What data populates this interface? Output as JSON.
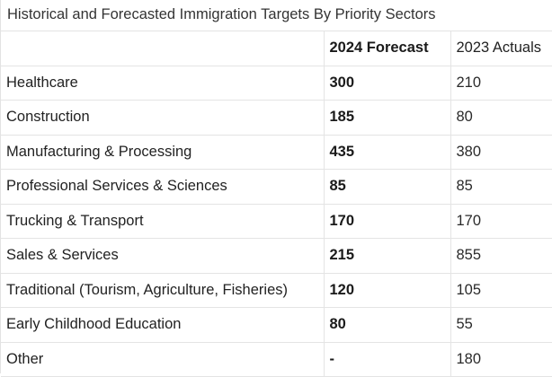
{
  "caption": "Historical and Forecasted Immigration Targets By Priority Sectors",
  "table": {
    "headers": [
      "",
      "2024 Forecast",
      "2023 Actuals"
    ],
    "rows": [
      {
        "sector": "Healthcare",
        "forecast_2024": "300",
        "actuals_2023": "210"
      },
      {
        "sector": "Construction",
        "forecast_2024": "185",
        "actuals_2023": "80"
      },
      {
        "sector": "Manufacturing & Processing",
        "forecast_2024": "435",
        "actuals_2023": "380"
      },
      {
        "sector": "Professional Services & Sciences",
        "forecast_2024": "85",
        "actuals_2023": "85"
      },
      {
        "sector": "Trucking & Transport",
        "forecast_2024": "170",
        "actuals_2023": "170"
      },
      {
        "sector": "Sales & Services",
        "forecast_2024": "215",
        "actuals_2023": "855"
      },
      {
        "sector": "Traditional (Tourism, Agriculture, Fisheries)",
        "forecast_2024": "120",
        "actuals_2023": "105"
      },
      {
        "sector": "Early Childhood Education",
        "forecast_2024": "80",
        "actuals_2023": "55"
      },
      {
        "sector": "Other",
        "forecast_2024": "-",
        "actuals_2023": "180"
      }
    ]
  }
}
